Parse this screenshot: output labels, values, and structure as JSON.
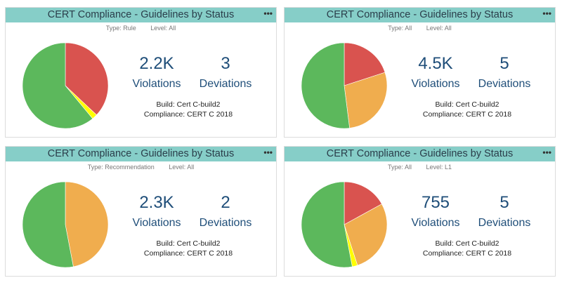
{
  "colors": {
    "header_bg": "#86cec8",
    "metric_text": "#1f4e79",
    "pie_green": "#5cb85c",
    "pie_red": "#d9534f",
    "pie_orange": "#f0ad4e",
    "pie_yellow": "#ffff00"
  },
  "widgets": [
    {
      "title": "CERT Compliance - Guidelines by Status",
      "menu_icon": "•••",
      "type_label": "Type: Rule",
      "level_label": "Level: All",
      "violations_value": "2.2K",
      "violations_label": "Violations",
      "deviations_value": "3",
      "deviations_label": "Deviations",
      "build": "Build: Cert C-build2",
      "compliance": "Compliance: CERT C 2018",
      "pie": [
        {
          "name": "red",
          "color": "#d9534f",
          "value": 0.37
        },
        {
          "name": "yellow",
          "color": "#ffff00",
          "value": 0.02
        },
        {
          "name": "green",
          "color": "#5cb85c",
          "value": 0.61
        }
      ]
    },
    {
      "title": "CERT Compliance - Guidelines by Status",
      "menu_icon": "•••",
      "type_label": "Type: All",
      "level_label": "Level: All",
      "violations_value": "4.5K",
      "violations_label": "Violations",
      "deviations_value": "5",
      "deviations_label": "Deviations",
      "build": "Build: Cert C-build2",
      "compliance": "Compliance: CERT C 2018",
      "pie": [
        {
          "name": "red",
          "color": "#d9534f",
          "value": 0.2
        },
        {
          "name": "orange",
          "color": "#f0ad4e",
          "value": 0.28
        },
        {
          "name": "green",
          "color": "#5cb85c",
          "value": 0.52
        }
      ]
    },
    {
      "title": "CERT Compliance - Guidelines by Status",
      "menu_icon": "•••",
      "type_label": "Type: Recommendation",
      "level_label": "Level: All",
      "violations_value": "2.3K",
      "violations_label": "Violations",
      "deviations_value": "2",
      "deviations_label": "Deviations",
      "build": "Build: Cert C-build2",
      "compliance": "Compliance: CERT C 2018",
      "pie": [
        {
          "name": "orange",
          "color": "#f0ad4e",
          "value": 0.47
        },
        {
          "name": "green",
          "color": "#5cb85c",
          "value": 0.53
        }
      ]
    },
    {
      "title": "CERT Compliance - Guidelines by Status",
      "menu_icon": "•••",
      "type_label": "Type: All",
      "level_label": "Level: L1",
      "violations_value": "755",
      "violations_label": "Violations",
      "deviations_value": "5",
      "deviations_label": "Deviations",
      "build": "Build: Cert C-build2",
      "compliance": "Compliance: CERT C 2018",
      "pie": [
        {
          "name": "red",
          "color": "#d9534f",
          "value": 0.17
        },
        {
          "name": "orange",
          "color": "#f0ad4e",
          "value": 0.28
        },
        {
          "name": "yellow",
          "color": "#ffff00",
          "value": 0.02
        },
        {
          "name": "green",
          "color": "#5cb85c",
          "value": 0.53
        }
      ]
    }
  ]
}
